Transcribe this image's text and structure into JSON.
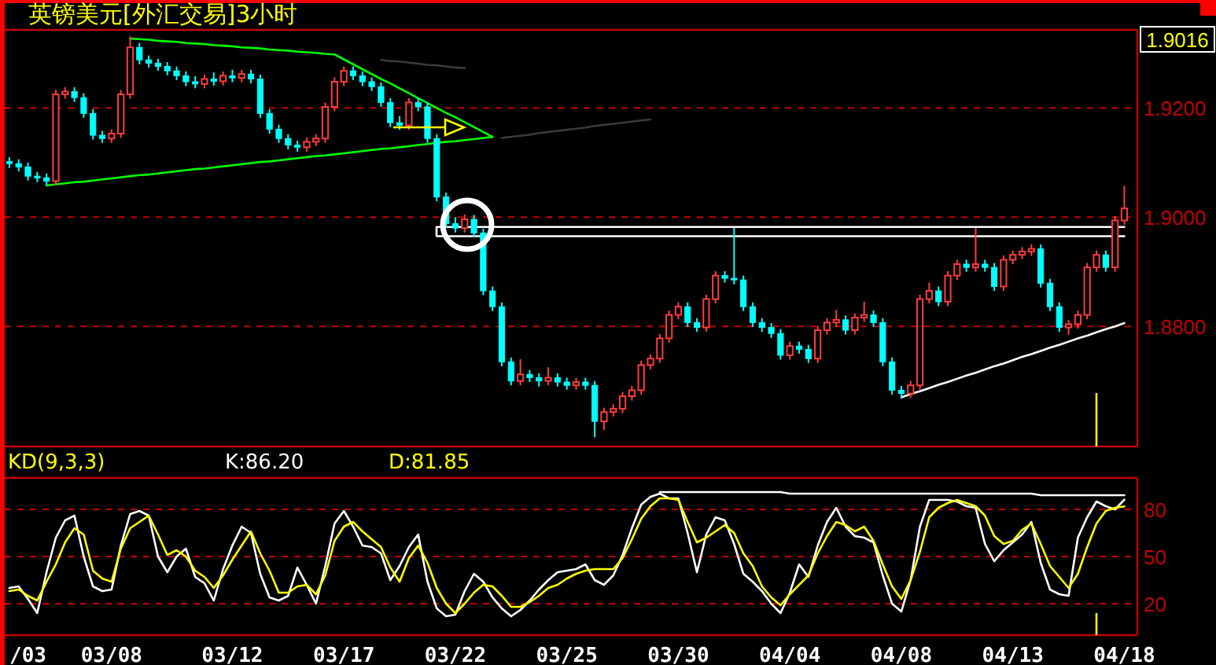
{
  "chart_data": [
    {
      "type": "candlestick",
      "title": "英镑美元[外汇交易]3小时",
      "ylim": [
        1.858,
        1.9343
      ],
      "yticks": [
        {
          "value": 1.88,
          "label": "1.8800"
        },
        {
          "value": 1.9,
          "label": "1.9000"
        },
        {
          "value": 1.92,
          "label": "1.9200"
        }
      ],
      "grid": "y",
      "tick_labels": "y",
      "annotations": [
        "1.9016"
      ],
      "categories": [
        null,
        null,
        null,
        null,
        null,
        null,
        null,
        null,
        null,
        null,
        null,
        null,
        null,
        null,
        null,
        null,
        null,
        null,
        null,
        null,
        null,
        null,
        null,
        null,
        null,
        null,
        null,
        null,
        null,
        null,
        null,
        null,
        null,
        null,
        null,
        null,
        null,
        null,
        null,
        null,
        null,
        null,
        null,
        null,
        null,
        null,
        null,
        null,
        null,
        null,
        null,
        null,
        null,
        null,
        null,
        null,
        null,
        null,
        null,
        null,
        null,
        null,
        null,
        null,
        null,
        null,
        null,
        null,
        null,
        null,
        null,
        null,
        null,
        null,
        null,
        null,
        null,
        null,
        null,
        null,
        null,
        null,
        null,
        null,
        null,
        null,
        null,
        null,
        null,
        null,
        null,
        null,
        null,
        null,
        null,
        null,
        null,
        null,
        null,
        null,
        null,
        null,
        null,
        null,
        null,
        null,
        null,
        null,
        null,
        null,
        null,
        null,
        null,
        null,
        null,
        null,
        null,
        null,
        null,
        null,
        null
      ],
      "ohlc": [
        [
          1.9102,
          1.911,
          1.909,
          1.9098
        ],
        [
          1.9098,
          1.9106,
          1.9084,
          1.9092
        ],
        [
          1.9092,
          1.91,
          1.9067,
          1.9075
        ],
        [
          1.9075,
          1.9083,
          1.9064,
          1.9072
        ],
        [
          1.9072,
          1.908,
          1.9058,
          1.9066
        ],
        [
          1.9066,
          1.9233,
          1.9058,
          1.9225
        ],
        [
          1.9225,
          1.9238,
          1.9217,
          1.923
        ],
        [
          1.923,
          1.9238,
          1.9211,
          1.9219
        ],
        [
          1.9219,
          1.9227,
          1.9182,
          1.919
        ],
        [
          1.919,
          1.9198,
          1.9142,
          1.915
        ],
        [
          1.915,
          1.9158,
          1.9136,
          1.9144
        ],
        [
          1.9144,
          1.9161,
          1.9136,
          1.9153
        ],
        [
          1.9153,
          1.9233,
          1.9145,
          1.9225
        ],
        [
          1.9225,
          1.9331,
          1.9217,
          1.9311
        ],
        [
          1.9311,
          1.9319,
          1.928,
          1.9288
        ],
        [
          1.9288,
          1.9296,
          1.9274,
          1.9282
        ],
        [
          1.9282,
          1.929,
          1.9268,
          1.9276
        ],
        [
          1.9276,
          1.9284,
          1.926,
          1.9268
        ],
        [
          1.9268,
          1.9276,
          1.9251,
          1.9259
        ],
        [
          1.9259,
          1.9267,
          1.924,
          1.9248
        ],
        [
          1.9248,
          1.9258,
          1.9236,
          1.9244
        ],
        [
          1.9244,
          1.9261,
          1.9236,
          1.9253
        ],
        [
          1.9253,
          1.9265,
          1.9241,
          1.9249
        ],
        [
          1.9249,
          1.9267,
          1.9241,
          1.9259
        ],
        [
          1.9259,
          1.927,
          1.9247,
          1.9255
        ],
        [
          1.9255,
          1.927,
          1.9247,
          1.9262
        ],
        [
          1.9262,
          1.927,
          1.9245,
          1.9253
        ],
        [
          1.9253,
          1.9261,
          1.9182,
          1.919
        ],
        [
          1.919,
          1.9198,
          1.9153,
          1.9161
        ],
        [
          1.9161,
          1.9169,
          1.9136,
          1.9144
        ],
        [
          1.9144,
          1.9152,
          1.9124,
          1.9132
        ],
        [
          1.9132,
          1.914,
          1.912,
          1.9128
        ],
        [
          1.9128,
          1.9146,
          1.912,
          1.9138
        ],
        [
          1.9138,
          1.9152,
          1.913,
          1.9144
        ],
        [
          1.9144,
          1.921,
          1.9136,
          1.9202
        ],
        [
          1.9202,
          1.9256,
          1.9194,
          1.9248
        ],
        [
          1.9248,
          1.9276,
          1.924,
          1.9268
        ],
        [
          1.9268,
          1.9276,
          1.9251,
          1.9259
        ],
        [
          1.9259,
          1.9267,
          1.924,
          1.9248
        ],
        [
          1.9248,
          1.9256,
          1.9231,
          1.9239
        ],
        [
          1.9239,
          1.9247,
          1.9202,
          1.921
        ],
        [
          1.921,
          1.9218,
          1.9165,
          1.9173
        ],
        [
          1.9173,
          1.9185,
          1.916,
          1.9168
        ],
        [
          1.9168,
          1.9218,
          1.916,
          1.921
        ],
        [
          1.921,
          1.9218,
          1.9194,
          1.9202
        ],
        [
          1.9202,
          1.921,
          1.9136,
          1.9144
        ],
        [
          1.9144,
          1.9152,
          1.9029,
          1.9037
        ],
        [
          1.9037,
          1.9045,
          1.898,
          1.8988
        ],
        [
          1.8988,
          1.9,
          1.8972,
          1.898
        ],
        [
          1.898,
          1.9005,
          1.8972,
          1.8996
        ],
        [
          1.8996,
          1.9004,
          1.8963,
          1.8971
        ],
        [
          1.8971,
          1.8979,
          1.8857,
          1.8865
        ],
        [
          1.8865,
          1.8873,
          1.8828,
          1.8836
        ],
        [
          1.8836,
          1.8844,
          1.8727,
          1.8735
        ],
        [
          1.8735,
          1.8743,
          1.8692,
          1.87
        ],
        [
          1.87,
          1.874,
          1.8692,
          1.8712
        ],
        [
          1.8712,
          1.872,
          1.8698,
          1.8706
        ],
        [
          1.8706,
          1.8714,
          1.869,
          1.87
        ],
        [
          1.87,
          1.8725,
          1.8692,
          1.8706
        ],
        [
          1.8706,
          1.8714,
          1.869,
          1.8698
        ],
        [
          1.8698,
          1.8706,
          1.8684,
          1.8692
        ],
        [
          1.8692,
          1.8706,
          1.8684,
          1.8698
        ],
        [
          1.8698,
          1.8706,
          1.8684,
          1.8692
        ],
        [
          1.8692,
          1.87,
          1.8597,
          1.8626
        ],
        [
          1.8626,
          1.8651,
          1.861,
          1.8643
        ],
        [
          1.8643,
          1.8657,
          1.8635,
          1.8649
        ],
        [
          1.8649,
          1.868,
          1.8641,
          1.8672
        ],
        [
          1.8672,
          1.8691,
          1.8664,
          1.8683
        ],
        [
          1.8683,
          1.8737,
          1.8675,
          1.8729
        ],
        [
          1.8729,
          1.8749,
          1.8721,
          1.8741
        ],
        [
          1.8741,
          1.8786,
          1.8733,
          1.8778
        ],
        [
          1.8778,
          1.8829,
          1.877,
          1.8821
        ],
        [
          1.8821,
          1.8844,
          1.8813,
          1.8836
        ],
        [
          1.8836,
          1.8844,
          1.8799,
          1.8807
        ],
        [
          1.8807,
          1.8815,
          1.879,
          1.8798
        ],
        [
          1.8798,
          1.8858,
          1.879,
          1.885
        ],
        [
          1.885,
          1.8901,
          1.8842,
          1.8893
        ],
        [
          1.8893,
          1.8901,
          1.888,
          1.8888
        ],
        [
          1.8888,
          1.898,
          1.8877,
          1.8885
        ],
        [
          1.8885,
          1.8893,
          1.8828,
          1.8836
        ],
        [
          1.8836,
          1.8844,
          1.8799,
          1.8807
        ],
        [
          1.8807,
          1.8815,
          1.879,
          1.8798
        ],
        [
          1.8798,
          1.8806,
          1.8779,
          1.8787
        ],
        [
          1.8787,
          1.8795,
          1.8739,
          1.8747
        ],
        [
          1.8747,
          1.8772,
          1.8739,
          1.8764
        ],
        [
          1.8764,
          1.8772,
          1.875,
          1.8758
        ],
        [
          1.8758,
          1.8766,
          1.8733,
          1.8741
        ],
        [
          1.8741,
          1.8801,
          1.8733,
          1.8793
        ],
        [
          1.8793,
          1.8815,
          1.8785,
          1.8807
        ],
        [
          1.8807,
          1.883,
          1.8799,
          1.8812
        ],
        [
          1.8812,
          1.882,
          1.8785,
          1.8793
        ],
        [
          1.8793,
          1.8824,
          1.8785,
          1.8816
        ],
        [
          1.8816,
          1.8845,
          1.8808,
          1.8821
        ],
        [
          1.8821,
          1.8829,
          1.8799,
          1.8807
        ],
        [
          1.8807,
          1.8815,
          1.8727,
          1.8735
        ],
        [
          1.8735,
          1.8743,
          1.8675,
          1.8683
        ],
        [
          1.8683,
          1.8691,
          1.8669,
          1.8677
        ],
        [
          1.8677,
          1.87,
          1.8669,
          1.8692
        ],
        [
          1.8692,
          1.8858,
          1.8684,
          1.885
        ],
        [
          1.885,
          1.888,
          1.8842,
          1.8865
        ],
        [
          1.8865,
          1.8873,
          1.8837,
          1.8845
        ],
        [
          1.8845,
          1.8901,
          1.8837,
          1.8893
        ],
        [
          1.8893,
          1.8922,
          1.8885,
          1.8914
        ],
        [
          1.8914,
          1.8922,
          1.89,
          1.8908
        ],
        [
          1.8908,
          1.898,
          1.89,
          1.8914
        ],
        [
          1.8914,
          1.8922,
          1.89,
          1.8908
        ],
        [
          1.8908,
          1.8916,
          1.8865,
          1.8873
        ],
        [
          1.8873,
          1.893,
          1.8865,
          1.8922
        ],
        [
          1.8922,
          1.8939,
          1.8914,
          1.8931
        ],
        [
          1.8931,
          1.8945,
          1.8923,
          1.8937
        ],
        [
          1.8937,
          1.895,
          1.8929,
          1.8942
        ],
        [
          1.8942,
          1.895,
          1.8871,
          1.8879
        ],
        [
          1.8879,
          1.8887,
          1.8828,
          1.8836
        ],
        [
          1.8836,
          1.8844,
          1.879,
          1.8798
        ],
        [
          1.8798,
          1.8812,
          1.8785,
          1.8804
        ],
        [
          1.8804,
          1.8829,
          1.8796,
          1.8821
        ],
        [
          1.8821,
          1.8916,
          1.8813,
          1.8908
        ],
        [
          1.8908,
          1.8939,
          1.89,
          1.8931
        ],
        [
          1.8931,
          1.8939,
          1.89,
          1.8908
        ],
        [
          1.8908,
          1.9002,
          1.89,
          1.8994
        ],
        [
          1.8994,
          1.9058,
          1.8986,
          1.9016
        ]
      ],
      "series": [
        {
          "type": "line",
          "color": "#3a3a3a",
          "values": [
            null,
            null,
            null,
            null,
            null,
            null,
            null,
            null,
            null,
            null,
            null,
            null,
            null,
            null,
            null,
            null,
            null,
            null,
            null,
            null,
            null,
            null,
            null,
            null,
            null,
            null,
            null,
            null,
            null,
            null,
            null,
            null,
            null,
            null,
            null,
            null,
            null,
            null,
            null,
            null,
            1.9288,
            1.9286,
            1.9285,
            1.9283,
            1.9281,
            1.9279,
            1.9278,
            1.9276,
            1.9274,
            1.9273,
            null,
            null,
            null,
            null,
            null,
            null,
            null,
            null,
            null,
            null,
            null,
            null,
            null,
            null,
            null,
            null,
            null,
            null,
            null,
            null,
            null,
            null,
            null,
            null,
            null,
            null,
            null,
            null,
            null,
            null,
            null,
            null,
            null,
            null,
            null,
            null,
            null,
            null,
            null,
            null,
            null,
            null,
            null,
            null,
            null,
            null,
            null,
            null,
            null,
            null,
            null,
            null,
            null,
            null,
            null,
            null,
            null,
            null,
            null,
            null,
            null,
            null,
            null,
            null,
            null,
            null,
            null,
            null,
            null,
            null,
            null
          ]
        },
        {
          "type": "line",
          "color": "#3a3a3a",
          "values": [
            null,
            null,
            null,
            null,
            null,
            null,
            null,
            null,
            null,
            null,
            null,
            null,
            null,
            null,
            null,
            null,
            null,
            null,
            null,
            null,
            null,
            null,
            null,
            null,
            null,
            null,
            null,
            null,
            null,
            null,
            null,
            null,
            null,
            null,
            null,
            null,
            null,
            null,
            null,
            null,
            null,
            null,
            null,
            null,
            null,
            null,
            null,
            null,
            null,
            null,
            null,
            null,
            null,
            1.9145,
            1.9147,
            1.9149,
            1.9151,
            1.9154,
            1.9156,
            1.9158,
            1.916,
            1.9162,
            1.9164,
            1.9167,
            1.9169,
            1.9171,
            1.9173,
            1.9175,
            1.9177,
            1.9179,
            null,
            null,
            null,
            null,
            null,
            null,
            null,
            null,
            null,
            null,
            null,
            null,
            null,
            null,
            null,
            null,
            null,
            null,
            null,
            null,
            null,
            null,
            null,
            null,
            null,
            null,
            null,
            null,
            null,
            null,
            null,
            null,
            null,
            null,
            null,
            null,
            null,
            null,
            null,
            null,
            null,
            null,
            null,
            null,
            null,
            null,
            null,
            null,
            null,
            null,
            null
          ]
        },
        {
          "type": "line",
          "color": "#00ff00",
          "values": [
            null,
            null,
            null,
            null,
            1.9058,
            1.906,
            1.9062,
            1.9064,
            1.9065,
            1.9067,
            1.9069,
            1.9071,
            1.9073,
            1.9075,
            1.9077,
            1.9078,
            1.908,
            1.9082,
            1.9084,
            1.9086,
            1.9088,
            1.9089,
            1.9091,
            1.9093,
            1.9095,
            1.9097,
            1.9099,
            1.9101,
            1.9102,
            1.9104,
            1.9106,
            1.9108,
            1.911,
            1.9112,
            1.9113,
            1.9115,
            1.9117,
            1.9119,
            1.9121,
            1.9123,
            1.9125,
            1.9126,
            1.9128,
            1.913,
            1.9132,
            1.9134,
            1.9136,
            1.9138,
            1.9139,
            1.9141,
            1.9143,
            1.9145,
            1.9147,
            null,
            null,
            null,
            null,
            null,
            null,
            null,
            null,
            null,
            null,
            null,
            null,
            null,
            null,
            null,
            null,
            null,
            null,
            null,
            null,
            null,
            null,
            null,
            null,
            null,
            null,
            null,
            null,
            null,
            null,
            null,
            null,
            null,
            null,
            null,
            null,
            null,
            null,
            null,
            null,
            null,
            null,
            null,
            null,
            null,
            null,
            null,
            null,
            null,
            null,
            null,
            null,
            null,
            null,
            null,
            null,
            null,
            null,
            null,
            null,
            null,
            null,
            null,
            null,
            null,
            null,
            null,
            null
          ]
        },
        {
          "type": "line",
          "color": "#00ff00",
          "values": [
            null,
            null,
            null,
            null,
            null,
            null,
            null,
            null,
            null,
            null,
            null,
            null,
            null,
            1.9327,
            1.9326,
            1.9325,
            1.9323,
            1.9322,
            1.9321,
            1.9319,
            1.9318,
            1.9317,
            1.9315,
            1.9314,
            1.9313,
            1.9311,
            1.931,
            1.9309,
            1.9307,
            1.9306,
            1.9305,
            1.9303,
            1.9302,
            1.9301,
            1.9299,
            1.9298,
            1.9289,
            1.928,
            1.9271,
            1.9262,
            1.9253,
            1.9245,
            1.9236,
            1.9227,
            1.9218,
            1.9209,
            1.92,
            1.9191,
            1.9183,
            1.9174,
            1.9165,
            1.9156,
            1.9147,
            null,
            null,
            null,
            null,
            null,
            null,
            null,
            null,
            null,
            null,
            null,
            null,
            null,
            null,
            null,
            null,
            null,
            null,
            null,
            null,
            null,
            null,
            null,
            null,
            null,
            null,
            null,
            null,
            null,
            null,
            null,
            null,
            null,
            null,
            null,
            null,
            null,
            null,
            null,
            null,
            null,
            null,
            null,
            null,
            null,
            null,
            null,
            null,
            null,
            null,
            null,
            null,
            null,
            null,
            null,
            null,
            null,
            null,
            null,
            null,
            null,
            null,
            null,
            null,
            null,
            null,
            null,
            null
          ]
        },
        {
          "type": "line",
          "color": "#ffffff",
          "values": [
            null,
            null,
            null,
            null,
            null,
            null,
            null,
            null,
            null,
            null,
            null,
            null,
            null,
            null,
            null,
            null,
            null,
            null,
            null,
            null,
            null,
            null,
            null,
            null,
            null,
            null,
            null,
            null,
            null,
            null,
            null,
            null,
            null,
            null,
            null,
            null,
            null,
            null,
            null,
            null,
            null,
            null,
            null,
            null,
            null,
            null,
            1.8982,
            1.8982,
            1.8982,
            1.8982,
            1.8982,
            1.8982,
            1.8982,
            1.8982,
            1.8982,
            1.8982,
            1.8982,
            1.8982,
            1.8982,
            1.8982,
            1.8982,
            1.8982,
            1.8982,
            1.8982,
            1.8982,
            1.8982,
            1.8982,
            1.8982,
            1.8982,
            1.8982,
            1.8982,
            1.8982,
            1.8982,
            1.8982,
            1.8982,
            1.8982,
            1.8982,
            1.8982,
            1.8982,
            1.8982,
            1.8982,
            1.8982,
            1.8982,
            1.8982,
            1.8982,
            1.8982,
            1.8982,
            1.8982,
            1.8982,
            1.8982,
            1.8982,
            1.8982,
            1.8982,
            1.8982,
            1.8982,
            1.8982,
            1.8982,
            1.8982,
            1.8982,
            1.8982,
            1.8982,
            1.8982,
            1.8982,
            1.8982,
            1.8982,
            1.8982,
            1.8982,
            1.8982,
            1.8982,
            1.8982,
            1.8982,
            1.8982,
            1.8982,
            1.8982,
            1.8982,
            1.8982,
            1.8982,
            1.8982,
            1.8982,
            1.8982,
            1.8982
          ]
        },
        {
          "type": "line",
          "color": "#ffffff",
          "values": [
            null,
            null,
            null,
            null,
            null,
            null,
            null,
            null,
            null,
            null,
            null,
            null,
            null,
            null,
            null,
            null,
            null,
            null,
            null,
            null,
            null,
            null,
            null,
            null,
            null,
            null,
            null,
            null,
            null,
            null,
            null,
            null,
            null,
            null,
            null,
            null,
            null,
            null,
            null,
            null,
            null,
            null,
            null,
            null,
            null,
            null,
            1.8965,
            1.8965,
            1.8965,
            1.8965,
            1.8965,
            1.8965,
            1.8965,
            1.8965,
            1.8965,
            1.8965,
            1.8965,
            1.8965,
            1.8965,
            1.8965,
            1.8965,
            1.8965,
            1.8965,
            1.8965,
            1.8965,
            1.8965,
            1.8965,
            1.8965,
            1.8965,
            1.8965,
            1.8965,
            1.8965,
            1.8965,
            1.8965,
            1.8965,
            1.8965,
            1.8965,
            1.8965,
            1.8965,
            1.8965,
            1.8965,
            1.8965,
            1.8965,
            1.8965,
            1.8965,
            1.8965,
            1.8965,
            1.8965,
            1.8965,
            1.8965,
            1.8965,
            1.8965,
            1.8965,
            1.8965,
            1.8965,
            1.8965,
            1.8965,
            1.8965,
            1.8965,
            1.8965,
            1.8965,
            1.8965,
            1.8965,
            1.8965,
            1.8965,
            1.8965,
            1.8965,
            1.8965,
            1.8965,
            1.8965,
            1.8965,
            1.8965,
            1.8965,
            1.8965,
            1.8965,
            1.8965,
            1.8965,
            1.8965,
            1.8965,
            1.8965,
            1.8965
          ]
        },
        {
          "type": "line",
          "color": "#ffffff",
          "values": [
            null,
            null,
            null,
            null,
            null,
            null,
            null,
            null,
            null,
            null,
            null,
            null,
            null,
            null,
            null,
            null,
            null,
            null,
            null,
            null,
            null,
            null,
            null,
            null,
            null,
            null,
            null,
            null,
            null,
            null,
            null,
            null,
            null,
            null,
            null,
            null,
            null,
            null,
            null,
            null,
            null,
            null,
            null,
            null,
            null,
            null,
            null,
            null,
            null,
            null,
            null,
            null,
            null,
            null,
            null,
            null,
            null,
            null,
            null,
            null,
            null,
            null,
            null,
            null,
            null,
            null,
            null,
            null,
            null,
            null,
            null,
            null,
            null,
            null,
            null,
            null,
            null,
            null,
            null,
            null,
            null,
            null,
            null,
            null,
            null,
            null,
            null,
            null,
            null,
            null,
            null,
            null,
            null,
            null,
            null,
            null,
            1.867,
            1.8676,
            1.8681,
            1.8687,
            1.8693,
            1.8698,
            1.8704,
            1.871,
            1.8715,
            1.8721,
            1.8727,
            1.8732,
            1.8738,
            1.8744,
            1.8749,
            1.8755,
            1.8761,
            1.8766,
            1.8772,
            1.8778,
            1.8783,
            1.8789,
            1.8795,
            1.88,
            1.8806
          ]
        }
      ]
    },
    {
      "type": "line",
      "title": "KD(9,3,3)",
      "ylim": [
        0,
        100
      ],
      "yticks": [
        20,
        50,
        80
      ],
      "grid": "y",
      "legend": "top",
      "categories": [
        null,
        "/03",
        null,
        null,
        null,
        null,
        null,
        null,
        null,
        null,
        null,
        "03/08",
        null,
        null,
        null,
        null,
        null,
        null,
        null,
        null,
        null,
        null,
        null,
        null,
        "03/12",
        null,
        null,
        null,
        null,
        null,
        null,
        null,
        null,
        null,
        null,
        null,
        "03/17",
        null,
        null,
        null,
        null,
        null,
        null,
        null,
        null,
        null,
        null,
        null,
        "03/22",
        null,
        null,
        null,
        null,
        null,
        null,
        null,
        null,
        null,
        null,
        null,
        "03/25",
        null,
        null,
        null,
        null,
        null,
        null,
        null,
        null,
        null,
        null,
        null,
        "03/30",
        null,
        null,
        null,
        null,
        null,
        null,
        null,
        null,
        null,
        null,
        null,
        "04/04",
        null,
        null,
        null,
        null,
        null,
        null,
        null,
        null,
        null,
        null,
        null,
        "04/08",
        null,
        null,
        null,
        null,
        null,
        null,
        null,
        null,
        null,
        null,
        null,
        "04/13",
        null,
        null,
        null,
        null,
        null,
        null,
        null,
        null,
        null,
        null,
        null,
        "04/18"
      ],
      "series": [
        {
          "name": "K:86.20",
          "color": "#ffffff",
          "values": [
            30,
            31,
            23,
            14,
            40,
            62,
            73,
            76,
            50,
            31,
            28,
            29,
            57,
            77,
            79,
            76,
            50,
            40,
            50,
            55,
            37,
            33,
            22,
            42,
            57,
            69,
            65,
            39,
            24,
            22,
            25,
            43,
            32,
            20,
            44,
            71,
            79,
            69,
            57,
            56,
            52,
            35,
            44,
            56,
            64,
            34,
            17,
            12,
            13,
            28,
            39,
            34,
            24,
            17,
            12,
            16,
            22,
            29,
            35,
            40,
            41,
            42,
            45,
            35,
            32,
            38,
            51,
            68,
            83,
            88,
            90,
            87,
            87,
            65,
            40,
            64,
            75,
            73,
            58,
            39,
            34,
            28,
            20,
            14,
            27,
            45,
            37,
            57,
            72,
            81,
            69,
            63,
            62,
            59,
            38,
            20,
            15,
            35,
            69,
            86,
            86,
            86,
            85,
            82,
            81,
            58,
            47,
            54,
            59,
            64,
            72,
            46,
            29,
            26,
            25,
            62,
            75,
            85,
            82,
            80,
            86.2
          ]
        },
        {
          "name": "D:81.85",
          "color": "#ffff00",
          "values": [
            28,
            29,
            25,
            22,
            34,
            45,
            59,
            68,
            64,
            41,
            36,
            34,
            55,
            68,
            72,
            76,
            64,
            51,
            54,
            50,
            41,
            37,
            30,
            38,
            48,
            57,
            66,
            52,
            41,
            27,
            27,
            31,
            32,
            26,
            38,
            60,
            69,
            72,
            66,
            61,
            56,
            43,
            34,
            49,
            57,
            46,
            30,
            20,
            14,
            20,
            27,
            32,
            31,
            25,
            18,
            18,
            21,
            25,
            30,
            32,
            36,
            39,
            41,
            42,
            42,
            42,
            49,
            61,
            74,
            82,
            87,
            87,
            86,
            72,
            59,
            62,
            66,
            70,
            65,
            52,
            44,
            31,
            24,
            19,
            26,
            32,
            38,
            52,
            63,
            72,
            70,
            66,
            69,
            60,
            45,
            31,
            23,
            35,
            53,
            75,
            81,
            84,
            86,
            84,
            82,
            76,
            63,
            58,
            60,
            67,
            71,
            58,
            44,
            37,
            30,
            39,
            56,
            71,
            79,
            81,
            81.85
          ]
        },
        {
          "color": "#ffffff",
          "values": [
            null,
            null,
            null,
            null,
            null,
            null,
            null,
            null,
            null,
            null,
            null,
            null,
            null,
            null,
            null,
            null,
            null,
            null,
            null,
            null,
            null,
            null,
            null,
            null,
            null,
            null,
            null,
            null,
            null,
            null,
            null,
            null,
            null,
            null,
            null,
            null,
            null,
            null,
            null,
            null,
            null,
            null,
            null,
            null,
            null,
            null,
            null,
            null,
            null,
            null,
            null,
            null,
            null,
            null,
            null,
            null,
            null,
            null,
            null,
            null,
            null,
            null,
            null,
            null,
            null,
            null,
            null,
            null,
            null,
            null,
            91,
            91,
            91,
            91,
            91,
            91,
            91,
            91,
            91,
            91,
            91,
            91,
            91,
            91,
            90,
            90,
            90,
            90,
            90,
            90,
            90,
            90,
            90,
            90,
            90,
            90,
            90,
            90,
            90,
            90,
            90,
            90,
            90,
            90,
            90,
            90,
            90,
            90,
            90,
            90,
            90,
            89,
            89,
            89,
            89,
            89,
            89,
            89,
            89,
            89,
            89
          ]
        }
      ]
    }
  ]
}
